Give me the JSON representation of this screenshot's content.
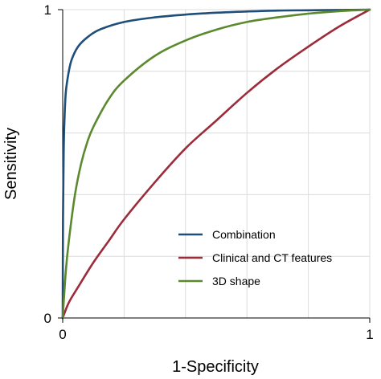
{
  "chart_data": {
    "type": "line",
    "xlabel": "1-Specificity",
    "ylabel": "Sensitivity",
    "xlim": [
      0,
      1
    ],
    "ylim": [
      0,
      1
    ],
    "x_ticks": [
      {
        "value": 0,
        "label": "0"
      },
      {
        "value": 1,
        "label": "1"
      }
    ],
    "y_ticks": [
      {
        "value": 0,
        "label": "0"
      },
      {
        "value": 1,
        "label": "1"
      }
    ],
    "grid": true,
    "legend_position": "lower-right",
    "series": [
      {
        "name": "Combination",
        "color": "#1f4e79",
        "points": [
          [
            0,
            0
          ],
          [
            0.001,
            0.32
          ],
          [
            0.003,
            0.52
          ],
          [
            0.005,
            0.62
          ],
          [
            0.01,
            0.73
          ],
          [
            0.02,
            0.8
          ],
          [
            0.03,
            0.84
          ],
          [
            0.05,
            0.88
          ],
          [
            0.08,
            0.91
          ],
          [
            0.12,
            0.935
          ],
          [
            0.2,
            0.96
          ],
          [
            0.3,
            0.975
          ],
          [
            0.4,
            0.984
          ],
          [
            0.5,
            0.99
          ],
          [
            0.6,
            0.994
          ],
          [
            0.7,
            0.997
          ],
          [
            0.8,
            0.998
          ],
          [
            0.9,
            0.999
          ],
          [
            1,
            1
          ]
        ]
      },
      {
        "name": "Clinical and CT features",
        "color": "#9b2c3a",
        "points": [
          [
            0,
            0
          ],
          [
            0.02,
            0.05
          ],
          [
            0.05,
            0.1
          ],
          [
            0.1,
            0.18
          ],
          [
            0.15,
            0.25
          ],
          [
            0.2,
            0.32
          ],
          [
            0.3,
            0.44
          ],
          [
            0.4,
            0.55
          ],
          [
            0.5,
            0.64
          ],
          [
            0.6,
            0.73
          ],
          [
            0.7,
            0.81
          ],
          [
            0.8,
            0.88
          ],
          [
            0.9,
            0.945
          ],
          [
            1,
            1
          ]
        ]
      },
      {
        "name": "3D shape",
        "color": "#5b8a2e",
        "points": [
          [
            0,
            0
          ],
          [
            0.01,
            0.15
          ],
          [
            0.02,
            0.25
          ],
          [
            0.04,
            0.4
          ],
          [
            0.06,
            0.5
          ],
          [
            0.08,
            0.57
          ],
          [
            0.1,
            0.62
          ],
          [
            0.15,
            0.71
          ],
          [
            0.2,
            0.77
          ],
          [
            0.3,
            0.85
          ],
          [
            0.4,
            0.9
          ],
          [
            0.5,
            0.935
          ],
          [
            0.6,
            0.96
          ],
          [
            0.7,
            0.975
          ],
          [
            0.8,
            0.987
          ],
          [
            0.9,
            0.995
          ],
          [
            1,
            1
          ]
        ]
      }
    ]
  }
}
